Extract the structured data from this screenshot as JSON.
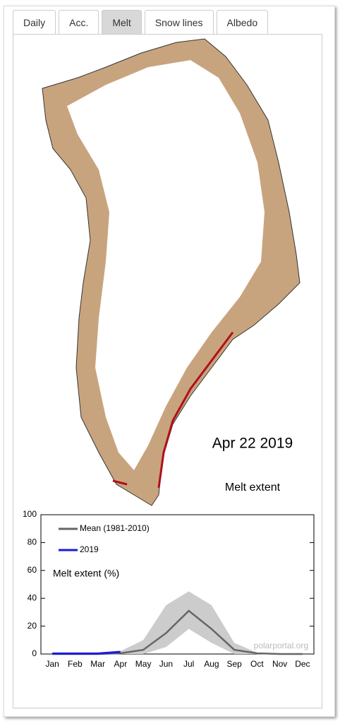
{
  "tabs": [
    "Daily",
    "Acc.",
    "Melt",
    "Snow lines",
    "Albedo"
  ],
  "active_tab": 2,
  "map": {
    "date": "Apr 22 2019",
    "label": "Melt extent"
  },
  "chart_data": {
    "type": "line",
    "ylabel": "Melt extent (%)",
    "watermark": "polarportal.org",
    "categories": [
      "Jan",
      "Feb",
      "Mar",
      "Apr",
      "May",
      "Jun",
      "Jul",
      "Aug",
      "Sep",
      "Oct",
      "Nov",
      "Dec"
    ],
    "ylim": [
      0,
      100
    ],
    "yticks": [
      0,
      20,
      40,
      60,
      80,
      100
    ],
    "range": {
      "color": "#cccccc",
      "low": [
        0,
        0,
        0,
        0,
        0,
        5,
        18,
        8,
        0,
        0,
        0,
        0
      ],
      "high": [
        0,
        0,
        0,
        2,
        10,
        35,
        45,
        35,
        8,
        1,
        0,
        0
      ]
    },
    "series": [
      {
        "name": "Mean (1981-2010)",
        "color": "#666666",
        "values": [
          0,
          0,
          0,
          0.5,
          3,
          15,
          31,
          18,
          3,
          0.5,
          0,
          0
        ]
      },
      {
        "name": "2019",
        "color": "#1a1adc",
        "values": [
          0.3,
          0.3,
          0.3,
          1.5,
          null,
          null,
          null,
          null,
          null,
          null,
          null,
          null
        ]
      }
    ]
  }
}
